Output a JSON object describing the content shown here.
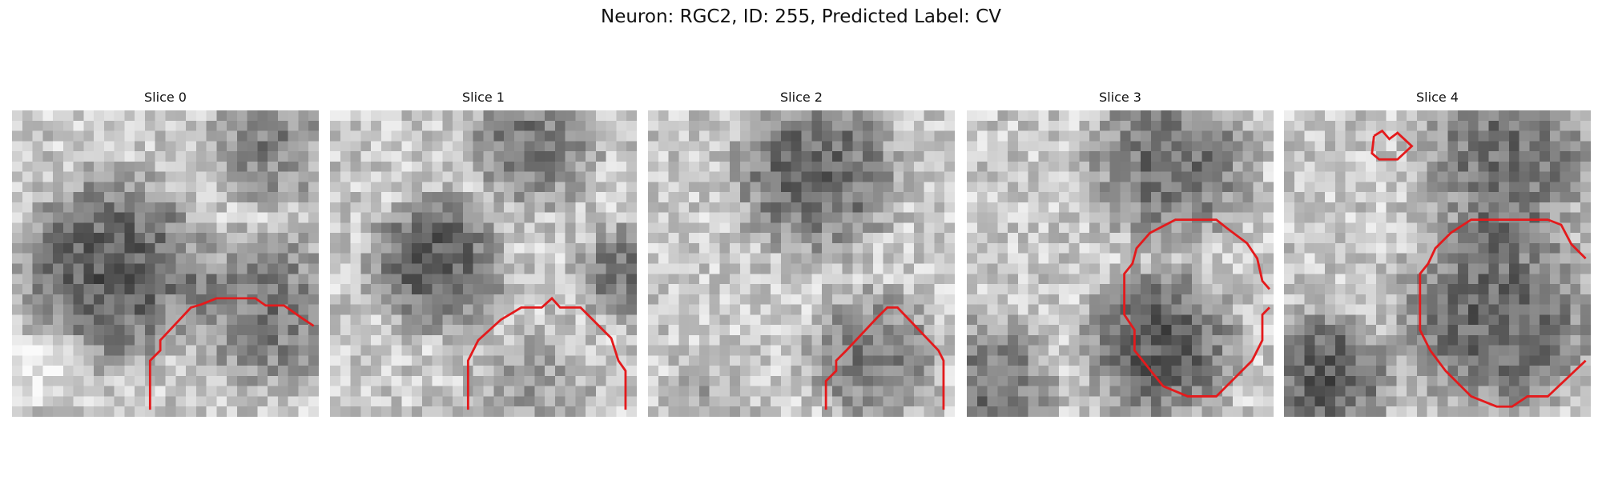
{
  "title": "Neuron: RGC2, ID: 255, Predicted Label: CV",
  "panels": [
    {
      "title": "Slice 0"
    },
    {
      "title": "Slice 1"
    },
    {
      "title": "Slice 2"
    },
    {
      "title": "Slice 3"
    },
    {
      "title": "Slice 4"
    }
  ]
}
